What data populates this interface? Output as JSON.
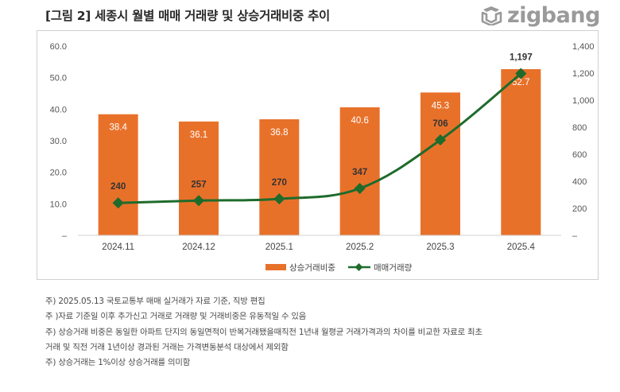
{
  "header": {
    "title": "[그림 2] 세종시 월별 매매 거래량 및 상승거래비중 추이",
    "logo_text": "zigbang",
    "logo_icon": "zigbang-logo-icon"
  },
  "chart_data": {
    "type": "bar",
    "categories": [
      "2024.11",
      "2024.12",
      "2025.1",
      "2025.2",
      "2025.3",
      "2025.4"
    ],
    "series": [
      {
        "name": "상승거래비중",
        "type": "bar",
        "axis": "left",
        "color": "#e8712a",
        "values": [
          38.4,
          36.1,
          36.8,
          40.6,
          45.3,
          52.7
        ],
        "labels": [
          "38.4",
          "36.1",
          "36.8",
          "40.6",
          "45.3",
          "52.7"
        ]
      },
      {
        "name": "매매거래량",
        "type": "line",
        "axis": "right",
        "color": "#1e6b2c",
        "values": [
          240,
          257,
          270,
          347,
          706,
          1197
        ],
        "labels": [
          "240",
          "257",
          "270",
          "347",
          "706",
          "1,197"
        ]
      }
    ],
    "y_left": {
      "ylim": [
        0,
        60
      ],
      "ticks": [
        0,
        10,
        20,
        30,
        40,
        50,
        60
      ],
      "tick_labels": [
        "–",
        "10.0",
        "20.0",
        "30.0",
        "40.0",
        "50.0",
        "60.0"
      ]
    },
    "y_right": {
      "ylim": [
        0,
        1400
      ],
      "ticks": [
        0,
        200,
        400,
        600,
        800,
        1000,
        1200,
        1400
      ],
      "tick_labels": [
        "–",
        "200",
        "400",
        "600",
        "800",
        "1,000",
        "1,200",
        "1,400"
      ]
    },
    "grid": false,
    "legend_position": "bottom-center"
  },
  "notes": [
    "주) 2025.05.13 국토교통부 매매 실거래가 자료 기준, 직방 편집",
    "주 )자료 기준일 이후 추가신고 거래로 거래량 및 거래비중은 유동적일 수 있음",
    "주) 상승거래 비중은 동일한 아파트 단지의 동일면적이 반복거래됐을때직전 1년내 월평균 거래가격과의 차이를 비교한 자료로 최초",
    "거래 및 직전 거래 1년이상 경과된 거래는 가격변동분석 대상에서 제외함",
    "주) 상승거래는 1%이상 상승거래를 의미함"
  ]
}
